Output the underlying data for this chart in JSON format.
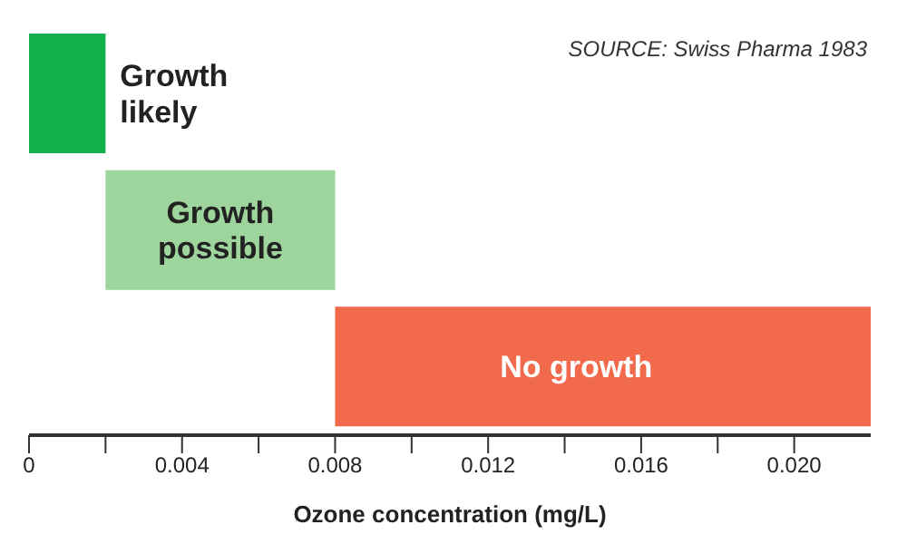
{
  "chart_data": {
    "type": "bar",
    "orientation": "horizontal",
    "xlabel": "Ozone concentration (mg/L)",
    "categories": [
      "Growth likely",
      "Growth possible",
      "No growth"
    ],
    "base": [
      0,
      0.002,
      0.008
    ],
    "values": [
      0.002,
      0.006,
      0.014
    ],
    "colors": [
      "#12b04a",
      "#9dd59c",
      "#f26a4c"
    ],
    "xlim": [
      0,
      0.022
    ],
    "xticks": [
      0,
      {
        "value": 0.002,
        "label": null
      },
      0.004,
      {
        "value": 0.006,
        "label": null
      },
      0.008,
      {
        "value": 0.01,
        "label": null
      },
      0.012,
      {
        "value": 0.014,
        "label": null
      },
      0.016,
      {
        "value": 0.018,
        "label": null
      },
      {
        "value": 0.02,
        "label": "0.020"
      }
    ],
    "tick_labels": "x",
    "grid": false,
    "legend": false,
    "annotations": [
      "SOURCE: Swiss Pharma 1983"
    ]
  }
}
